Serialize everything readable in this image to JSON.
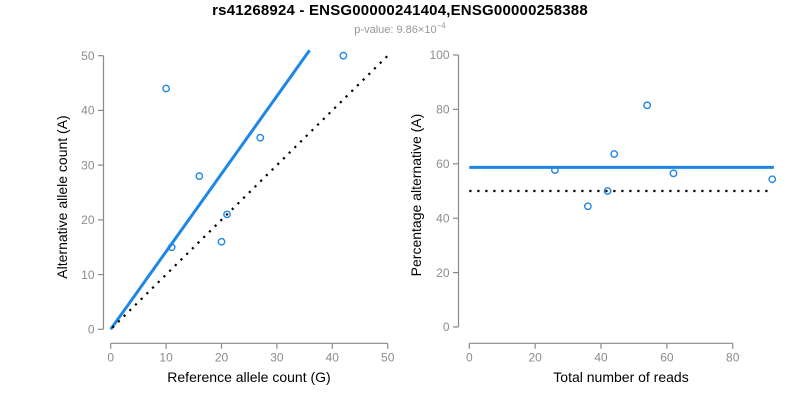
{
  "header": {
    "title": "rs41268924 - ENSG00000241404,ENSG00000258388",
    "subtitle_label": "p-value: 9.86×10",
    "subtitle_exponent": "−4"
  },
  "colors": {
    "point_blue": "#1E87E5",
    "line_blue": "#1E87E5",
    "dotted_black": "#000000",
    "axis_gray": "#8A8A8A",
    "tick_label_gray": "#8C8C8C",
    "axis_label_black": "#000000",
    "subtitle_gray": "#979797",
    "background": "#FFFFFF"
  },
  "chart_data": [
    {
      "id": "allele-count-scatter",
      "type": "scatter",
      "title": "",
      "xlabel": "Reference allele count (G)",
      "ylabel": "Alternative allele count (A)",
      "xlim": [
        0,
        50
      ],
      "ylim": [
        0,
        50
      ],
      "xticks": [
        0,
        10,
        20,
        30,
        40,
        50
      ],
      "yticks": [
        0,
        10,
        20,
        30,
        40,
        50
      ],
      "grid": false,
      "legend": false,
      "points": [
        [
          10,
          44
        ],
        [
          11,
          15
        ],
        [
          16,
          28
        ],
        [
          20,
          16
        ],
        [
          21,
          21
        ],
        [
          27,
          35
        ],
        [
          42,
          50
        ]
      ],
      "lines": [
        {
          "name": "fit-line",
          "style": "solid",
          "color": "blue",
          "x1": 0,
          "y1": 0,
          "x2": 35.9,
          "y2": 51.0
        },
        {
          "name": "identity-line",
          "style": "dotted",
          "color": "black",
          "x1": 0.3,
          "y1": 0.3,
          "x2": 50,
          "y2": 50
        }
      ]
    },
    {
      "id": "percentage-vs-reads-scatter",
      "type": "scatter",
      "title": "",
      "xlabel": "Total number of reads",
      "ylabel": "Percentage alternative (A)",
      "xlim": [
        0,
        92.5
      ],
      "ylim": [
        0,
        100
      ],
      "xticks": [
        0,
        20,
        40,
        60,
        80
      ],
      "yticks": [
        0,
        20,
        40,
        60,
        80,
        100
      ],
      "grid": false,
      "legend": false,
      "points": [
        [
          26,
          57.7
        ],
        [
          36,
          44.4
        ],
        [
          42,
          50
        ],
        [
          44,
          63.6
        ],
        [
          54,
          81.5
        ],
        [
          62,
          56.5
        ],
        [
          92,
          54.3
        ]
      ],
      "lines": [
        {
          "name": "mean-percentage-line",
          "style": "solid",
          "color": "blue",
          "x1": 0,
          "y1": 58.7,
          "x2": 92.5,
          "y2": 58.7
        },
        {
          "name": "expected-50pct-line",
          "style": "dotted",
          "color": "black",
          "x1": 0,
          "y1": 50,
          "x2": 91.5,
          "y2": 50
        }
      ]
    }
  ]
}
